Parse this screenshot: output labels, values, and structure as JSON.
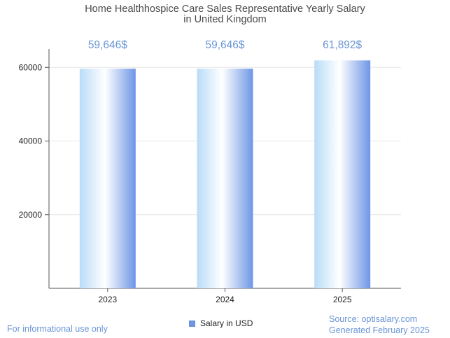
{
  "title_line1": "Home Healthhospice Care Sales Representative Yearly Salary",
  "title_line2": "in United Kingdom",
  "legend_label": "Salary in USD",
  "footnote_left": "For informational use only",
  "source": "Source: optisalary.com",
  "generated": "Generated February 2025",
  "colors": {
    "bar_light": "#ffffff",
    "bar_mid": "#b9dcf8",
    "bar_dark": "#6e96e6",
    "value_label": "#6a95d6",
    "grid": "#e6e6e6",
    "axis": "#555555"
  },
  "chart_data": {
    "type": "bar",
    "categories": [
      "2023",
      "2024",
      "2025"
    ],
    "values": [
      59646,
      59646,
      61892
    ],
    "value_labels": [
      "59,646$",
      "59,646$",
      "61,892$"
    ],
    "yticks": [
      20000,
      40000,
      60000
    ],
    "ylim": [
      0,
      65000
    ],
    "grid": true,
    "legend": "bottom-center"
  }
}
